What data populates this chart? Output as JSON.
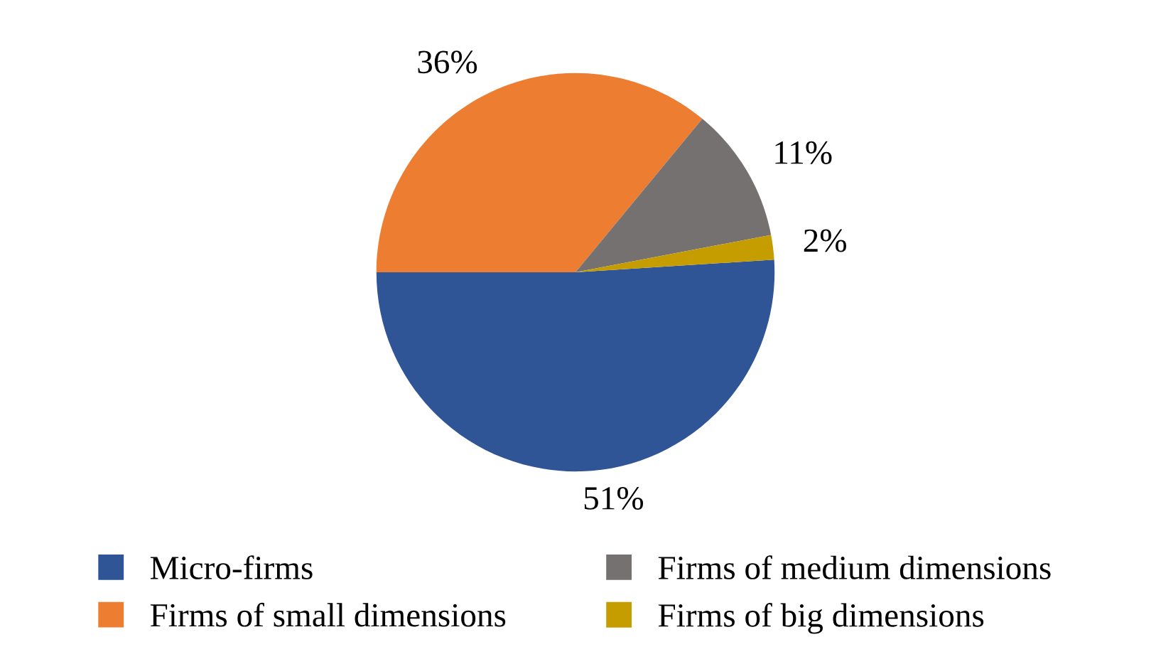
{
  "chart_data": {
    "type": "pie",
    "categories": [
      "Micro-firms",
      "Firms of small dimensions",
      "Firms of medium dimensions",
      "Firms of big dimensions"
    ],
    "values": [
      51,
      36,
      11,
      2
    ],
    "colors": [
      "#2f5597",
      "#ed7d31",
      "#767171",
      "#c59d00"
    ],
    "value_labels": [
      "51%",
      "36%",
      "11%",
      "2%"
    ],
    "legend": "bottom"
  }
}
